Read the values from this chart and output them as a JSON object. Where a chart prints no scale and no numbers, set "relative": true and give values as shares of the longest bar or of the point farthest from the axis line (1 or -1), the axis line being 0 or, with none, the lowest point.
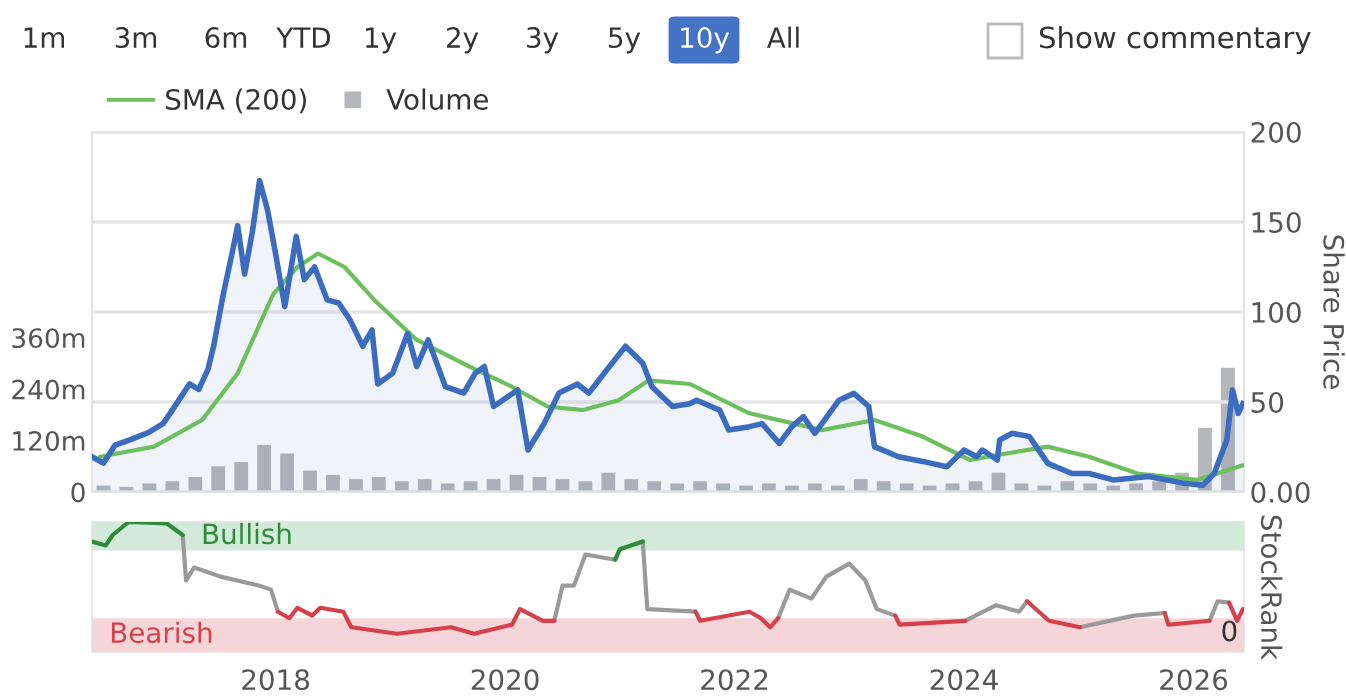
{
  "chart_data": [
    {
      "type": "line",
      "ylabel": null,
      "y2label": "Share Price",
      "annotations": [
        "1m",
        "3m",
        "6m",
        "YTD",
        "1y",
        "2y",
        "3y",
        "5y",
        "10y",
        "All",
        "Show commentary"
      ],
      "xlim": [
        2016.4,
        2026.44
      ],
      "ylim": [
        0,
        840
      ],
      "yticks": [
        0,
        {
          "value": 120,
          "label": "120m"
        },
        {
          "value": 240,
          "label": "240m"
        },
        {
          "value": 360,
          "label": "360m"
        }
      ],
      "y2lim": [
        0,
        200
      ],
      "y2ticks": [
        {
          "value": 0,
          "label": "0.00"
        },
        50,
        100,
        150,
        200
      ],
      "grid": "y",
      "legend": "top left",
      "tick_labels": "y",
      "series": [
        {
          "type": "bar",
          "name": "Volume",
          "color": "#b4b6ba",
          "axis": "y",
          "x": [
            2016.5,
            2016.7,
            2016.9,
            2017.1,
            2017.3,
            2017.5,
            2017.7,
            2017.9,
            2018.1,
            2018.3,
            2018.5,
            2018.7,
            2018.9,
            2019.1,
            2019.3,
            2019.5,
            2019.7,
            2019.9,
            2020.1,
            2020.3,
            2020.5,
            2020.7,
            2020.9,
            2021.1,
            2021.3,
            2021.5,
            2021.7,
            2021.9,
            2022.1,
            2022.3,
            2022.5,
            2022.7,
            2022.9,
            2023.1,
            2023.3,
            2023.5,
            2023.7,
            2023.9,
            2024.1,
            2024.3,
            2024.5,
            2024.7,
            2024.9,
            2025.1,
            2025.3,
            2025.5,
            2025.7,
            2025.9,
            2026.1,
            2026.3
          ],
          "values": [
            15,
            12,
            20,
            25,
            35,
            60,
            70,
            110,
            90,
            50,
            40,
            30,
            35,
            25,
            30,
            20,
            25,
            30,
            40,
            35,
            30,
            25,
            45,
            30,
            25,
            20,
            25,
            20,
            15,
            20,
            15,
            20,
            15,
            30,
            25,
            20,
            15,
            20,
            25,
            45,
            20,
            15,
            25,
            20,
            15,
            20,
            25,
            45,
            150,
            290
          ]
        },
        {
          "type": "area",
          "color": "#3b6cc0",
          "axis": "y2",
          "x": [
            2016.4,
            2016.5,
            2016.6,
            2016.73,
            2016.89,
            2017.02,
            2017.1,
            2017.25,
            2017.33,
            2017.41,
            2017.46,
            2017.54,
            2017.62,
            2017.67,
            2017.73,
            2017.8,
            2017.86,
            2017.93,
            2018.0,
            2018.08,
            2018.18,
            2018.25,
            2018.34,
            2018.45,
            2018.55,
            2018.65,
            2018.76,
            2018.84,
            2018.89,
            2019.02,
            2019.15,
            2019.23,
            2019.33,
            2019.48,
            2019.64,
            2019.74,
            2019.82,
            2019.9,
            2020.11,
            2020.2,
            2020.34,
            2020.47,
            2020.63,
            2020.73,
            2020.91,
            2021.05,
            2021.2,
            2021.28,
            2021.46,
            2021.61,
            2021.67,
            2021.87,
            2021.95,
            2022.13,
            2022.24,
            2022.39,
            2022.5,
            2022.6,
            2022.7,
            2022.91,
            2023.04,
            2023.17,
            2023.22,
            2023.43,
            2023.64,
            2023.85,
            2024.0,
            2024.11,
            2024.16,
            2024.29,
            2024.31,
            2024.42,
            2024.57,
            2024.73,
            2024.94,
            2025.09,
            2025.3,
            2025.61,
            2025.92,
            2026.08,
            2026.18,
            2026.29,
            2026.34,
            2026.39,
            2026.43
          ],
          "values": [
            19.6,
            16,
            26,
            29,
            33,
            38,
            45.5,
            60,
            57,
            68,
            81,
            108.5,
            132.5,
            148,
            121,
            145.5,
            173,
            156.7,
            132.5,
            103,
            142,
            118,
            125,
            106.7,
            105,
            95.5,
            81,
            90,
            60,
            66,
            88,
            69.7,
            84.5,
            58.5,
            55,
            66,
            69.7,
            47.5,
            56.7,
            23.3,
            38,
            55,
            60,
            55,
            69.7,
            81,
            71.5,
            58.5,
            47.5,
            49,
            51,
            45.5,
            34.4,
            36.3,
            38,
            27,
            36.3,
            41.9,
            32.6,
            51,
            54.8,
            47.5,
            25.2,
            19.6,
            17,
            14,
            23.3,
            19.6,
            23.3,
            17.8,
            28.9,
            32.6,
            30.8,
            15.9,
            10.3,
            10.3,
            6.7,
            8.6,
            4.8,
            3.7,
            10.3,
            28.9,
            56.7,
            43.7,
            49
          ]
        },
        {
          "name": "SMA (200)",
          "color": "#6cc05c",
          "axis": "y2",
          "x": [
            2016.47,
            2016.94,
            2017.36,
            2017.67,
            2017.98,
            2018.19,
            2018.37,
            2018.6,
            2018.86,
            2019.23,
            2019.69,
            2020.06,
            2020.37,
            2020.68,
            2020.99,
            2021.25,
            2021.61,
            2022.13,
            2022.76,
            2023.22,
            2023.64,
            2024.05,
            2024.37,
            2024.73,
            2025.09,
            2025.51,
            2026.03,
            2026.43
          ],
          "values": [
            19.6,
            25.2,
            40,
            66,
            110,
            125,
            132.5,
            125,
            106.7,
            84.5,
            69.7,
            58.5,
            47.5,
            45.5,
            51,
            62,
            60,
            43.7,
            34.4,
            40,
            30.8,
            17.8,
            21.4,
            25.2,
            19.6,
            10.3,
            6.7,
            14.8
          ]
        }
      ]
    },
    {
      "type": "line",
      "relative": true,
      "y2label": "StockRank",
      "annotations": [
        "0"
      ],
      "xlim": [
        2016.4,
        2026.44
      ],
      "xticks": [
        2018,
        2020,
        2022,
        2024,
        2026
      ],
      "tick_labels": "x",
      "bands": [
        {
          "axis": "y",
          "from": 0.78,
          "to": 1.0,
          "label": "Bullish",
          "color": "#d3eadb"
        },
        {
          "axis": "y",
          "from": 0,
          "to": 0.26,
          "label": "Bearish",
          "color": "#f6d5d8"
        }
      ],
      "x": [
        2016.4,
        2016.52,
        2016.58,
        2016.72,
        2017.05,
        2017.19,
        2017.22,
        2017.29,
        2017.52,
        2017.86,
        2017.96,
        2018.02,
        2018.12,
        2018.19,
        2018.32,
        2018.39,
        2018.59,
        2018.66,
        2019.06,
        2019.53,
        2019.73,
        2020.06,
        2020.13,
        2020.33,
        2020.43,
        2020.5,
        2020.6,
        2020.7,
        2020.96,
        2021.0,
        2021.2,
        2021.24,
        2021.66,
        2021.7,
        2022.13,
        2022.23,
        2022.31,
        2022.38,
        2022.48,
        2022.67,
        2022.8,
        2023.0,
        2023.14,
        2023.24,
        2023.4,
        2023.44,
        2024.01,
        2024.28,
        2024.48,
        2024.55,
        2024.74,
        2025.01,
        2025.48,
        2025.75,
        2025.78,
        2026.14,
        2026.21,
        2026.31,
        2026.38,
        2026.43
      ],
      "series": [
        {
          "color": "#9a9a9a",
          "values": [
            null,
            null,
            null,
            null,
            null,
            0.9,
            0.55,
            0.65,
            0.58,
            0.51,
            0.48,
            0.31,
            null,
            null,
            null,
            null,
            null,
            null,
            null,
            null,
            null,
            null,
            null,
            null,
            0.24,
            0.51,
            0.51,
            0.75,
            0.71,
            null,
            0.85,
            0.33,
            0.31,
            null,
            null,
            null,
            null,
            0.26,
            0.48,
            0.41,
            0.58,
            0.68,
            0.55,
            0.33,
            0.28,
            null,
            0.24,
            0.36,
            0.31,
            0.39,
            null,
            0.19,
            0.28,
            0.3,
            null,
            0.24,
            0.39,
            0.38,
            null,
            null
          ]
        },
        {
          "color": "#d6404a",
          "values": [
            null,
            null,
            null,
            null,
            null,
            null,
            null,
            null,
            null,
            null,
            null,
            0.31,
            0.26,
            0.34,
            0.28,
            0.34,
            0.31,
            0.19,
            0.14,
            0.19,
            0.14,
            0.21,
            0.33,
            0.24,
            0.24,
            null,
            null,
            null,
            null,
            null,
            null,
            null,
            0.31,
            0.24,
            0.31,
            0.26,
            0.19,
            0.26,
            null,
            null,
            null,
            null,
            null,
            null,
            0.28,
            0.21,
            0.24,
            null,
            null,
            0.39,
            0.24,
            0.19,
            null,
            0.3,
            0.21,
            0.24,
            null,
            0.38,
            0.24,
            0.33
          ]
        },
        {
          "color": "#2e8b3a",
          "values": [
            0.85,
            0.82,
            0.9,
            1.0,
            0.99,
            0.9,
            null,
            null,
            null,
            null,
            null,
            null,
            null,
            null,
            null,
            null,
            null,
            null,
            null,
            null,
            null,
            null,
            null,
            null,
            null,
            null,
            null,
            null,
            0.71,
            0.79,
            0.85,
            null,
            null,
            null,
            null,
            null,
            null,
            null,
            null,
            null,
            null,
            null,
            null,
            null,
            null,
            null,
            null,
            null,
            null,
            null,
            null,
            null,
            null,
            null,
            null,
            null,
            null,
            null,
            null,
            null
          ]
        }
      ]
    }
  ]
}
